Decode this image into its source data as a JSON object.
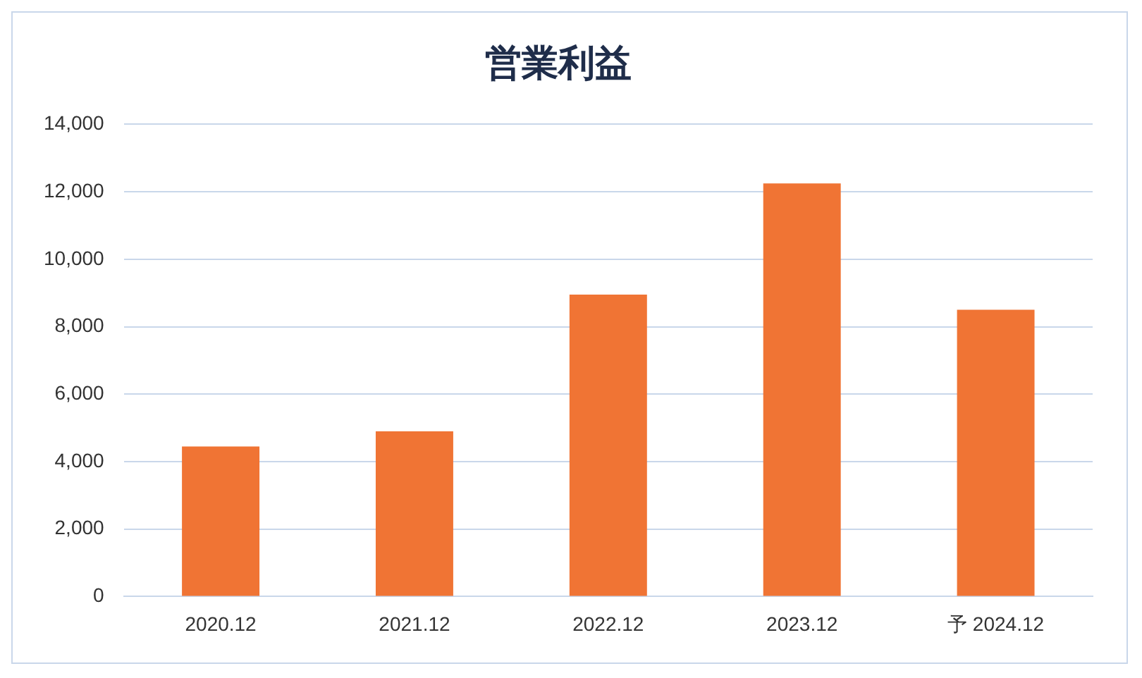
{
  "chart_data": {
    "type": "bar",
    "title": "営業利益",
    "categories": [
      "2020.12",
      "2021.12",
      "2022.12",
      "2023.12",
      "予 2024.12"
    ],
    "values": [
      4450,
      4900,
      8950,
      12250,
      8500
    ],
    "color": "#f07434",
    "ylim": [
      0,
      14000
    ],
    "yticks": [
      0,
      {
        "value": 2000,
        "label": "2,000"
      },
      {
        "value": 4000,
        "label": "4,000"
      },
      {
        "value": 6000,
        "label": "6,000"
      },
      {
        "value": 8000,
        "label": "8,000"
      },
      {
        "value": 10000,
        "label": "10,000"
      },
      {
        "value": 12000,
        "label": "12,000"
      },
      {
        "value": 14000,
        "label": "14,000"
      }
    ],
    "grid": "y",
    "legend": false
  }
}
